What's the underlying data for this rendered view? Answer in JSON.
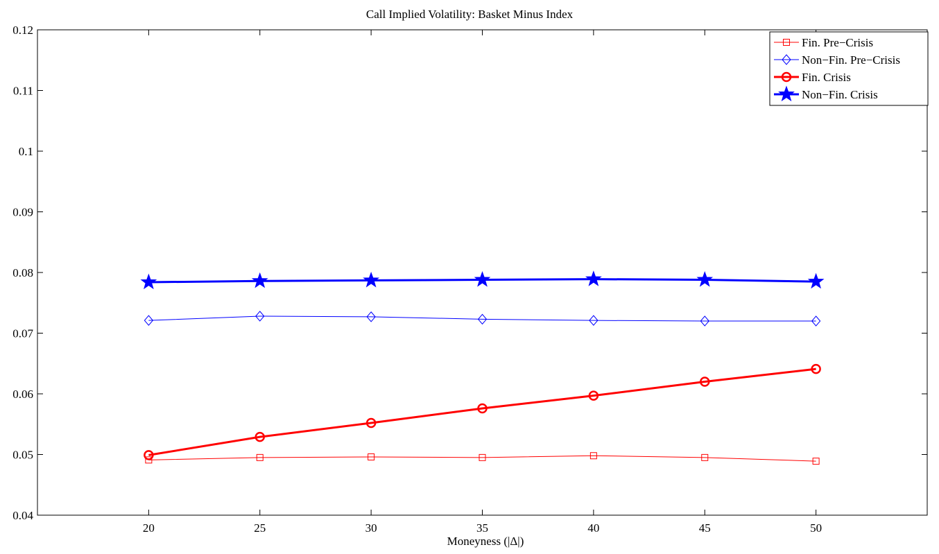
{
  "chart_data": {
    "type": "line",
    "title": "Call Implied Volatility: Basket Minus Index",
    "xlabel": "Moneyness (|Δ|)",
    "ylabel": "",
    "xlim": [
      15,
      55
    ],
    "ylim": [
      0.04,
      0.12
    ],
    "x_ticks": [
      20,
      25,
      30,
      35,
      40,
      45,
      50
    ],
    "x_tick_labels": [
      "20",
      "25",
      "30",
      "35",
      "40",
      "45",
      "50"
    ],
    "y_ticks": [
      0.04,
      0.05,
      0.06,
      0.07,
      0.08,
      0.09,
      0.1,
      0.11,
      0.12
    ],
    "y_tick_labels": [
      "0.04",
      "0.05",
      "0.06",
      "0.07",
      "0.08",
      "0.09",
      "0.1",
      "0.11",
      "0.12"
    ],
    "grid": false,
    "legend_position": "top-right",
    "x": [
      20,
      25,
      30,
      35,
      40,
      45,
      50
    ],
    "series": [
      {
        "name": "Fin. Pre−Crisis",
        "values": [
          0.0491,
          0.0495,
          0.0496,
          0.0495,
          0.0498,
          0.0495,
          0.0489
        ],
        "color": "#ff0000",
        "marker": "square",
        "thick": false
      },
      {
        "name": "Non−Fin. Pre−Crisis",
        "values": [
          0.0721,
          0.0728,
          0.0727,
          0.0723,
          0.0721,
          0.072,
          0.072
        ],
        "color": "#0000ff",
        "marker": "diamond",
        "thick": false
      },
      {
        "name": "Fin. Crisis",
        "values": [
          0.0499,
          0.0529,
          0.0552,
          0.0576,
          0.0597,
          0.062,
          0.0641
        ],
        "color": "#ff0000",
        "marker": "circle",
        "thick": true
      },
      {
        "name": "Non−Fin. Crisis",
        "values": [
          0.0784,
          0.0786,
          0.0787,
          0.0788,
          0.0789,
          0.0788,
          0.0785
        ],
        "color": "#0000ff",
        "marker": "star",
        "thick": true
      }
    ]
  }
}
